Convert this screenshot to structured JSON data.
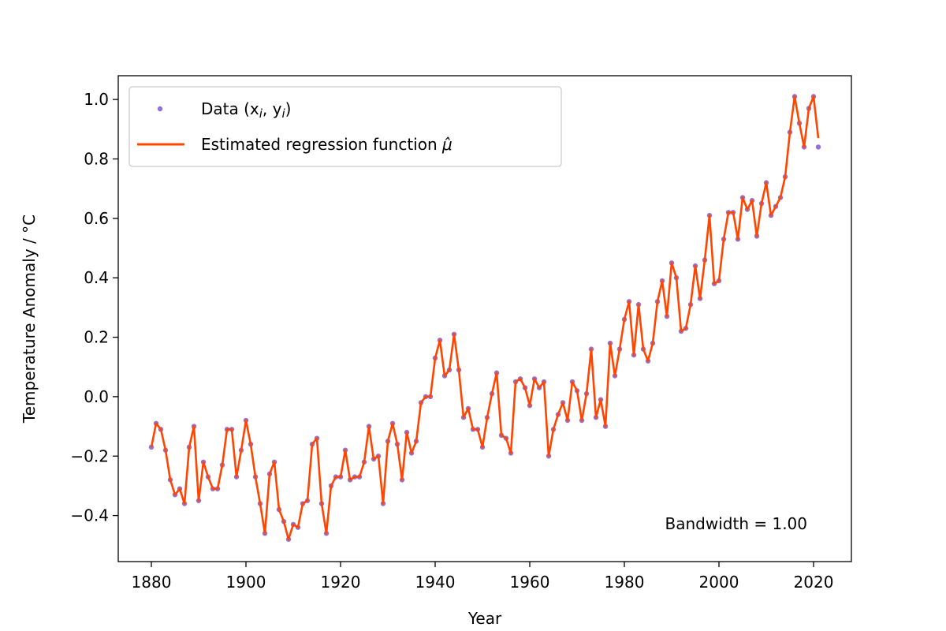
{
  "chart_data": {
    "type": "scatter",
    "xlabel": "Year",
    "ylabel": "Temperature Anomaly / °C",
    "xlim": [
      1873,
      2028
    ],
    "ylim": [
      -0.555,
      1.08
    ],
    "xticks": [
      1880,
      1900,
      1920,
      1940,
      1960,
      1980,
      2000,
      2020
    ],
    "yticks": [
      -0.4,
      -0.2,
      0.0,
      0.2,
      0.4,
      0.6,
      0.8,
      1.0
    ],
    "ytick_labels": [
      "−0.4",
      "−0.2",
      "0.0",
      "0.2",
      "0.4",
      "0.6",
      "0.8",
      "1.0"
    ],
    "xtick_labels": [
      "1880",
      "1900",
      "1920",
      "1940",
      "1960",
      "1980",
      "2000",
      "2020"
    ],
    "grid": false,
    "legend_position": "top-left",
    "legend": {
      "data_label": "Data (x",
      "data_label_sub_i": "i",
      "data_label_mid": ", y",
      "data_label_end": ")",
      "line_label": "Estimated regression function ",
      "line_label_symbol": "μ̂"
    },
    "annotation": "Bandwidth = 1.00",
    "colors": {
      "points": "#9370DB",
      "line": "#FF4500"
    },
    "series": [
      {
        "name": "Data (x_i, y_i)",
        "kind": "points",
        "x": [
          1880,
          1881,
          1882,
          1883,
          1884,
          1885,
          1886,
          1887,
          1888,
          1889,
          1890,
          1891,
          1892,
          1893,
          1894,
          1895,
          1896,
          1897,
          1898,
          1899,
          1900,
          1901,
          1902,
          1903,
          1904,
          1905,
          1906,
          1907,
          1908,
          1909,
          1910,
          1911,
          1912,
          1913,
          1914,
          1915,
          1916,
          1917,
          1918,
          1919,
          1920,
          1921,
          1922,
          1923,
          1924,
          1925,
          1926,
          1927,
          1928,
          1929,
          1930,
          1931,
          1932,
          1933,
          1934,
          1935,
          1936,
          1937,
          1938,
          1939,
          1940,
          1941,
          1942,
          1943,
          1944,
          1945,
          1946,
          1947,
          1948,
          1949,
          1950,
          1951,
          1952,
          1953,
          1954,
          1955,
          1956,
          1957,
          1958,
          1959,
          1960,
          1961,
          1962,
          1963,
          1964,
          1965,
          1966,
          1967,
          1968,
          1969,
          1970,
          1971,
          1972,
          1973,
          1974,
          1975,
          1976,
          1977,
          1978,
          1979,
          1980,
          1981,
          1982,
          1983,
          1984,
          1985,
          1986,
          1987,
          1988,
          1989,
          1990,
          1991,
          1992,
          1993,
          1994,
          1995,
          1996,
          1997,
          1998,
          1999,
          2000,
          2001,
          2002,
          2003,
          2004,
          2005,
          2006,
          2007,
          2008,
          2009,
          2010,
          2011,
          2012,
          2013,
          2014,
          2015,
          2016,
          2017,
          2018,
          2019,
          2020,
          2021
        ],
        "y": [
          -0.17,
          -0.09,
          -0.11,
          -0.18,
          -0.28,
          -0.33,
          -0.31,
          -0.36,
          -0.17,
          -0.1,
          -0.35,
          -0.22,
          -0.27,
          -0.31,
          -0.31,
          -0.23,
          -0.11,
          -0.11,
          -0.27,
          -0.18,
          -0.08,
          -0.16,
          -0.27,
          -0.36,
          -0.46,
          -0.26,
          -0.22,
          -0.38,
          -0.42,
          -0.48,
          -0.43,
          -0.44,
          -0.36,
          -0.35,
          -0.16,
          -0.14,
          -0.36,
          -0.46,
          -0.3,
          -0.27,
          -0.27,
          -0.18,
          -0.28,
          -0.27,
          -0.27,
          -0.22,
          -0.1,
          -0.21,
          -0.2,
          -0.36,
          -0.15,
          -0.09,
          -0.16,
          -0.28,
          -0.12,
          -0.19,
          -0.15,
          -0.02,
          0.0,
          0.0,
          0.13,
          0.19,
          0.07,
          0.09,
          0.21,
          0.09,
          -0.07,
          -0.04,
          -0.11,
          -0.11,
          -0.17,
          -0.07,
          0.01,
          0.08,
          -0.13,
          -0.14,
          -0.19,
          0.05,
          0.06,
          0.03,
          -0.03,
          0.06,
          0.03,
          0.05,
          -0.2,
          -0.11,
          -0.06,
          -0.02,
          -0.08,
          0.05,
          0.02,
          -0.08,
          0.01,
          0.16,
          -0.07,
          -0.01,
          -0.1,
          0.18,
          0.07,
          0.16,
          0.26,
          0.32,
          0.14,
          0.31,
          0.16,
          0.12,
          0.18,
          0.32,
          0.39,
          0.27,
          0.45,
          0.4,
          0.22,
          0.23,
          0.31,
          0.44,
          0.33,
          0.46,
          0.61,
          0.38,
          0.39,
          0.53,
          0.62,
          0.62,
          0.53,
          0.67,
          0.63,
          0.66,
          0.54,
          0.65,
          0.72,
          0.61,
          0.64,
          0.67,
          0.74,
          0.89,
          1.01,
          0.92,
          0.84,
          0.97,
          1.01,
          0.84
        ]
      },
      {
        "name": "Estimated regression function",
        "kind": "line",
        "x": [
          1880,
          1881,
          1882,
          1883,
          1884,
          1885,
          1886,
          1887,
          1888,
          1889,
          1890,
          1891,
          1892,
          1893,
          1894,
          1895,
          1896,
          1897,
          1898,
          1899,
          1900,
          1901,
          1902,
          1903,
          1904,
          1905,
          1906,
          1907,
          1908,
          1909,
          1910,
          1911,
          1912,
          1913,
          1914,
          1915,
          1916,
          1917,
          1918,
          1919,
          1920,
          1921,
          1922,
          1923,
          1924,
          1925,
          1926,
          1927,
          1928,
          1929,
          1930,
          1931,
          1932,
          1933,
          1934,
          1935,
          1936,
          1937,
          1938,
          1939,
          1940,
          1941,
          1942,
          1943,
          1944,
          1945,
          1946,
          1947,
          1948,
          1949,
          1950,
          1951,
          1952,
          1953,
          1954,
          1955,
          1956,
          1957,
          1958,
          1959,
          1960,
          1961,
          1962,
          1963,
          1964,
          1965,
          1966,
          1967,
          1968,
          1969,
          1970,
          1971,
          1972,
          1973,
          1974,
          1975,
          1976,
          1977,
          1978,
          1979,
          1980,
          1981,
          1982,
          1983,
          1984,
          1985,
          1986,
          1987,
          1988,
          1989,
          1990,
          1991,
          1992,
          1993,
          1994,
          1995,
          1996,
          1997,
          1998,
          1999,
          2000,
          2001,
          2002,
          2003,
          2004,
          2005,
          2006,
          2007,
          2008,
          2009,
          2010,
          2011,
          2012,
          2013,
          2014,
          2015,
          2016,
          2017,
          2018,
          2019,
          2020,
          2021
        ],
        "y": [
          -0.17,
          -0.09,
          -0.11,
          -0.18,
          -0.28,
          -0.33,
          -0.31,
          -0.36,
          -0.17,
          -0.1,
          -0.35,
          -0.22,
          -0.27,
          -0.31,
          -0.31,
          -0.23,
          -0.11,
          -0.11,
          -0.27,
          -0.18,
          -0.08,
          -0.16,
          -0.27,
          -0.36,
          -0.46,
          -0.26,
          -0.22,
          -0.38,
          -0.42,
          -0.48,
          -0.43,
          -0.44,
          -0.36,
          -0.35,
          -0.16,
          -0.14,
          -0.36,
          -0.46,
          -0.3,
          -0.27,
          -0.27,
          -0.18,
          -0.28,
          -0.27,
          -0.27,
          -0.22,
          -0.1,
          -0.21,
          -0.2,
          -0.36,
          -0.15,
          -0.09,
          -0.16,
          -0.28,
          -0.12,
          -0.19,
          -0.15,
          -0.02,
          0.0,
          0.0,
          0.13,
          0.19,
          0.07,
          0.09,
          0.21,
          0.09,
          -0.07,
          -0.04,
          -0.11,
          -0.11,
          -0.17,
          -0.07,
          0.01,
          0.08,
          -0.13,
          -0.14,
          -0.19,
          0.05,
          0.06,
          0.03,
          -0.03,
          0.06,
          0.03,
          0.05,
          -0.2,
          -0.11,
          -0.06,
          -0.02,
          -0.08,
          0.05,
          0.02,
          -0.08,
          0.01,
          0.16,
          -0.07,
          -0.01,
          -0.1,
          0.18,
          0.07,
          0.16,
          0.26,
          0.32,
          0.14,
          0.31,
          0.16,
          0.12,
          0.18,
          0.32,
          0.39,
          0.27,
          0.45,
          0.4,
          0.22,
          0.23,
          0.31,
          0.44,
          0.33,
          0.46,
          0.61,
          0.38,
          0.39,
          0.53,
          0.62,
          0.62,
          0.53,
          0.67,
          0.63,
          0.66,
          0.54,
          0.65,
          0.72,
          0.61,
          0.64,
          0.67,
          0.74,
          0.89,
          1.01,
          0.92,
          0.84,
          0.97,
          1.01,
          0.87
        ]
      }
    ]
  }
}
